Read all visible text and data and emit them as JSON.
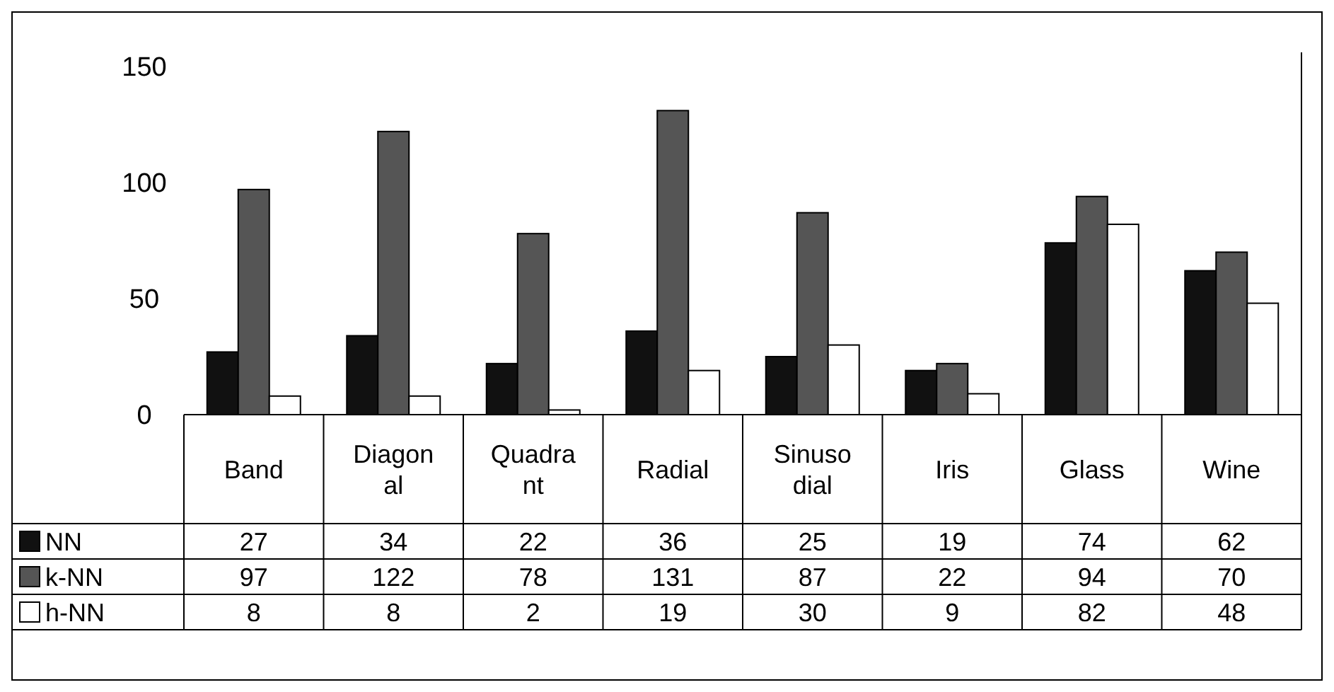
{
  "chart_data": {
    "type": "bar",
    "categories": [
      "Band",
      "Diagonal",
      "Quadrant",
      "Radial",
      "Sinusodial",
      "Iris",
      "Glass",
      "Wine"
    ],
    "series": [
      {
        "name": "NN",
        "color": "#111111",
        "values": [
          27,
          34,
          22,
          36,
          25,
          19,
          74,
          62
        ]
      },
      {
        "name": "k-NN",
        "color": "#555555",
        "values": [
          97,
          122,
          78,
          131,
          87,
          22,
          94,
          70
        ]
      },
      {
        "name": "h-NN",
        "color": "#ffffff",
        "values": [
          8,
          8,
          2,
          19,
          30,
          9,
          82,
          48
        ]
      }
    ],
    "ylim": [
      0,
      150
    ],
    "yticks": [
      0,
      50,
      100,
      150
    ],
    "grid": false,
    "legend": "bottom left",
    "data_labels": true
  }
}
